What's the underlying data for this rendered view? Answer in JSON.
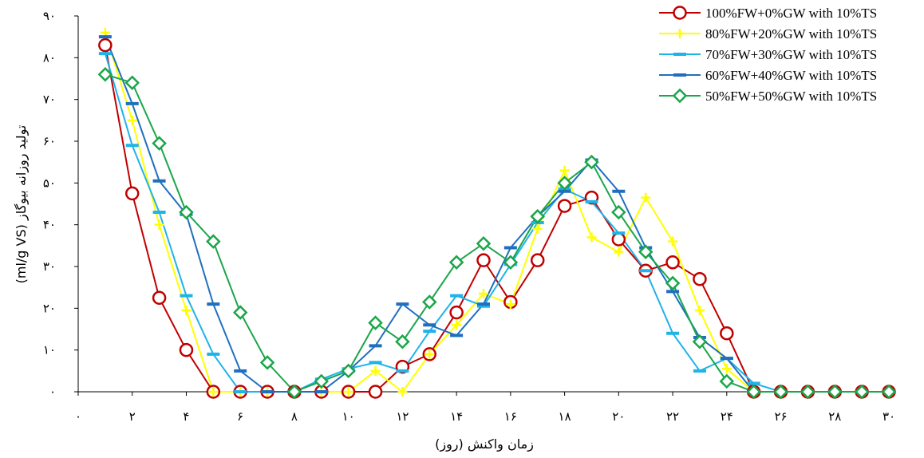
{
  "chart_data": {
    "type": "line",
    "xlabel": "زمان واکنش (روز)",
    "ylabel": "تولید روزانه بیوگاز (ml/g VS)",
    "xlim": [
      0,
      30
    ],
    "ylim": [
      0,
      90
    ],
    "x_ticks": [
      0,
      2,
      4,
      6,
      8,
      10,
      12,
      14,
      16,
      18,
      20,
      22,
      24,
      26,
      28,
      30
    ],
    "x_tick_labels": [
      "۰",
      "۲",
      "۴",
      "۶",
      "۸",
      "۱۰",
      "۱۲",
      "۱۴",
      "۱۶",
      "۱۸",
      "۲۰",
      "۲۲",
      "۲۴",
      "۲۶",
      "۲۸",
      "۳۰"
    ],
    "y_ticks": [
      0,
      10,
      20,
      30,
      40,
      50,
      60,
      70,
      80,
      90
    ],
    "y_tick_labels": [
      "۰",
      "۱۰",
      "۲۰",
      "۳۰",
      "۴۰",
      "۵۰",
      "۶۰",
      "۷۰",
      "۸۰",
      "۹۰"
    ],
    "grid": false,
    "legend_position": "top-right",
    "x": [
      1,
      2,
      3,
      4,
      5,
      6,
      7,
      8,
      9,
      10,
      11,
      12,
      13,
      14,
      15,
      16,
      17,
      18,
      19,
      20,
      21,
      22,
      23,
      24,
      25,
      26,
      27,
      28,
      29,
      30
    ],
    "series": [
      {
        "name": "100%FW+0%GW with 10%TS",
        "color": "#c00000",
        "marker": "circle",
        "values": [
          83,
          47.5,
          22.5,
          10,
          0,
          0,
          0,
          0,
          0,
          0,
          0,
          6,
          9,
          19,
          31.5,
          21.5,
          31.5,
          44.5,
          46.5,
          36.5,
          29,
          31,
          27,
          14,
          0,
          0,
          0,
          0,
          0,
          0
        ]
      },
      {
        "name": "80%FW+20%GW with 10%TS",
        "color": "#ffff00",
        "marker": "plus",
        "values": [
          86,
          65,
          40,
          19.5,
          0,
          0,
          0,
          0,
          0,
          0,
          5,
          0,
          9,
          16,
          23.5,
          21,
          39,
          53,
          37,
          33.5,
          46.5,
          36,
          19.5,
          5.5,
          0,
          0,
          0,
          0,
          0,
          0
        ]
      },
      {
        "name": "70%FW+30%GW with 10%TS",
        "color": "#1fb3e8",
        "marker": "dash",
        "values": [
          81,
          59,
          43,
          23,
          9,
          0,
          0,
          0,
          3,
          5.5,
          7,
          5,
          14.5,
          23,
          20.5,
          30.5,
          40.5,
          48.5,
          45.5,
          38,
          29,
          14,
          5,
          8,
          2,
          0,
          0,
          0,
          0,
          0
        ]
      },
      {
        "name": "60%FW+40%GW with 10%TS",
        "color": "#1f6fbf",
        "marker": "dash",
        "values": [
          85,
          69,
          50.5,
          42.5,
          21,
          5,
          0,
          0,
          0,
          5,
          11,
          21,
          16,
          13.5,
          21,
          34.5,
          42,
          48,
          55.5,
          48,
          34.5,
          24,
          13,
          8,
          0,
          0,
          0,
          0,
          0,
          0
        ]
      },
      {
        "name": "50%FW+50%GW with 10%TS",
        "color": "#1aa64a",
        "marker": "diamond",
        "values": [
          76,
          74,
          59.5,
          43,
          36,
          19,
          7,
          0,
          2.5,
          5,
          16.5,
          12,
          21.5,
          31,
          35.5,
          31,
          42,
          50,
          55,
          43,
          33.5,
          26,
          12,
          2.5,
          0,
          0,
          0,
          0,
          0,
          0
        ]
      }
    ]
  }
}
